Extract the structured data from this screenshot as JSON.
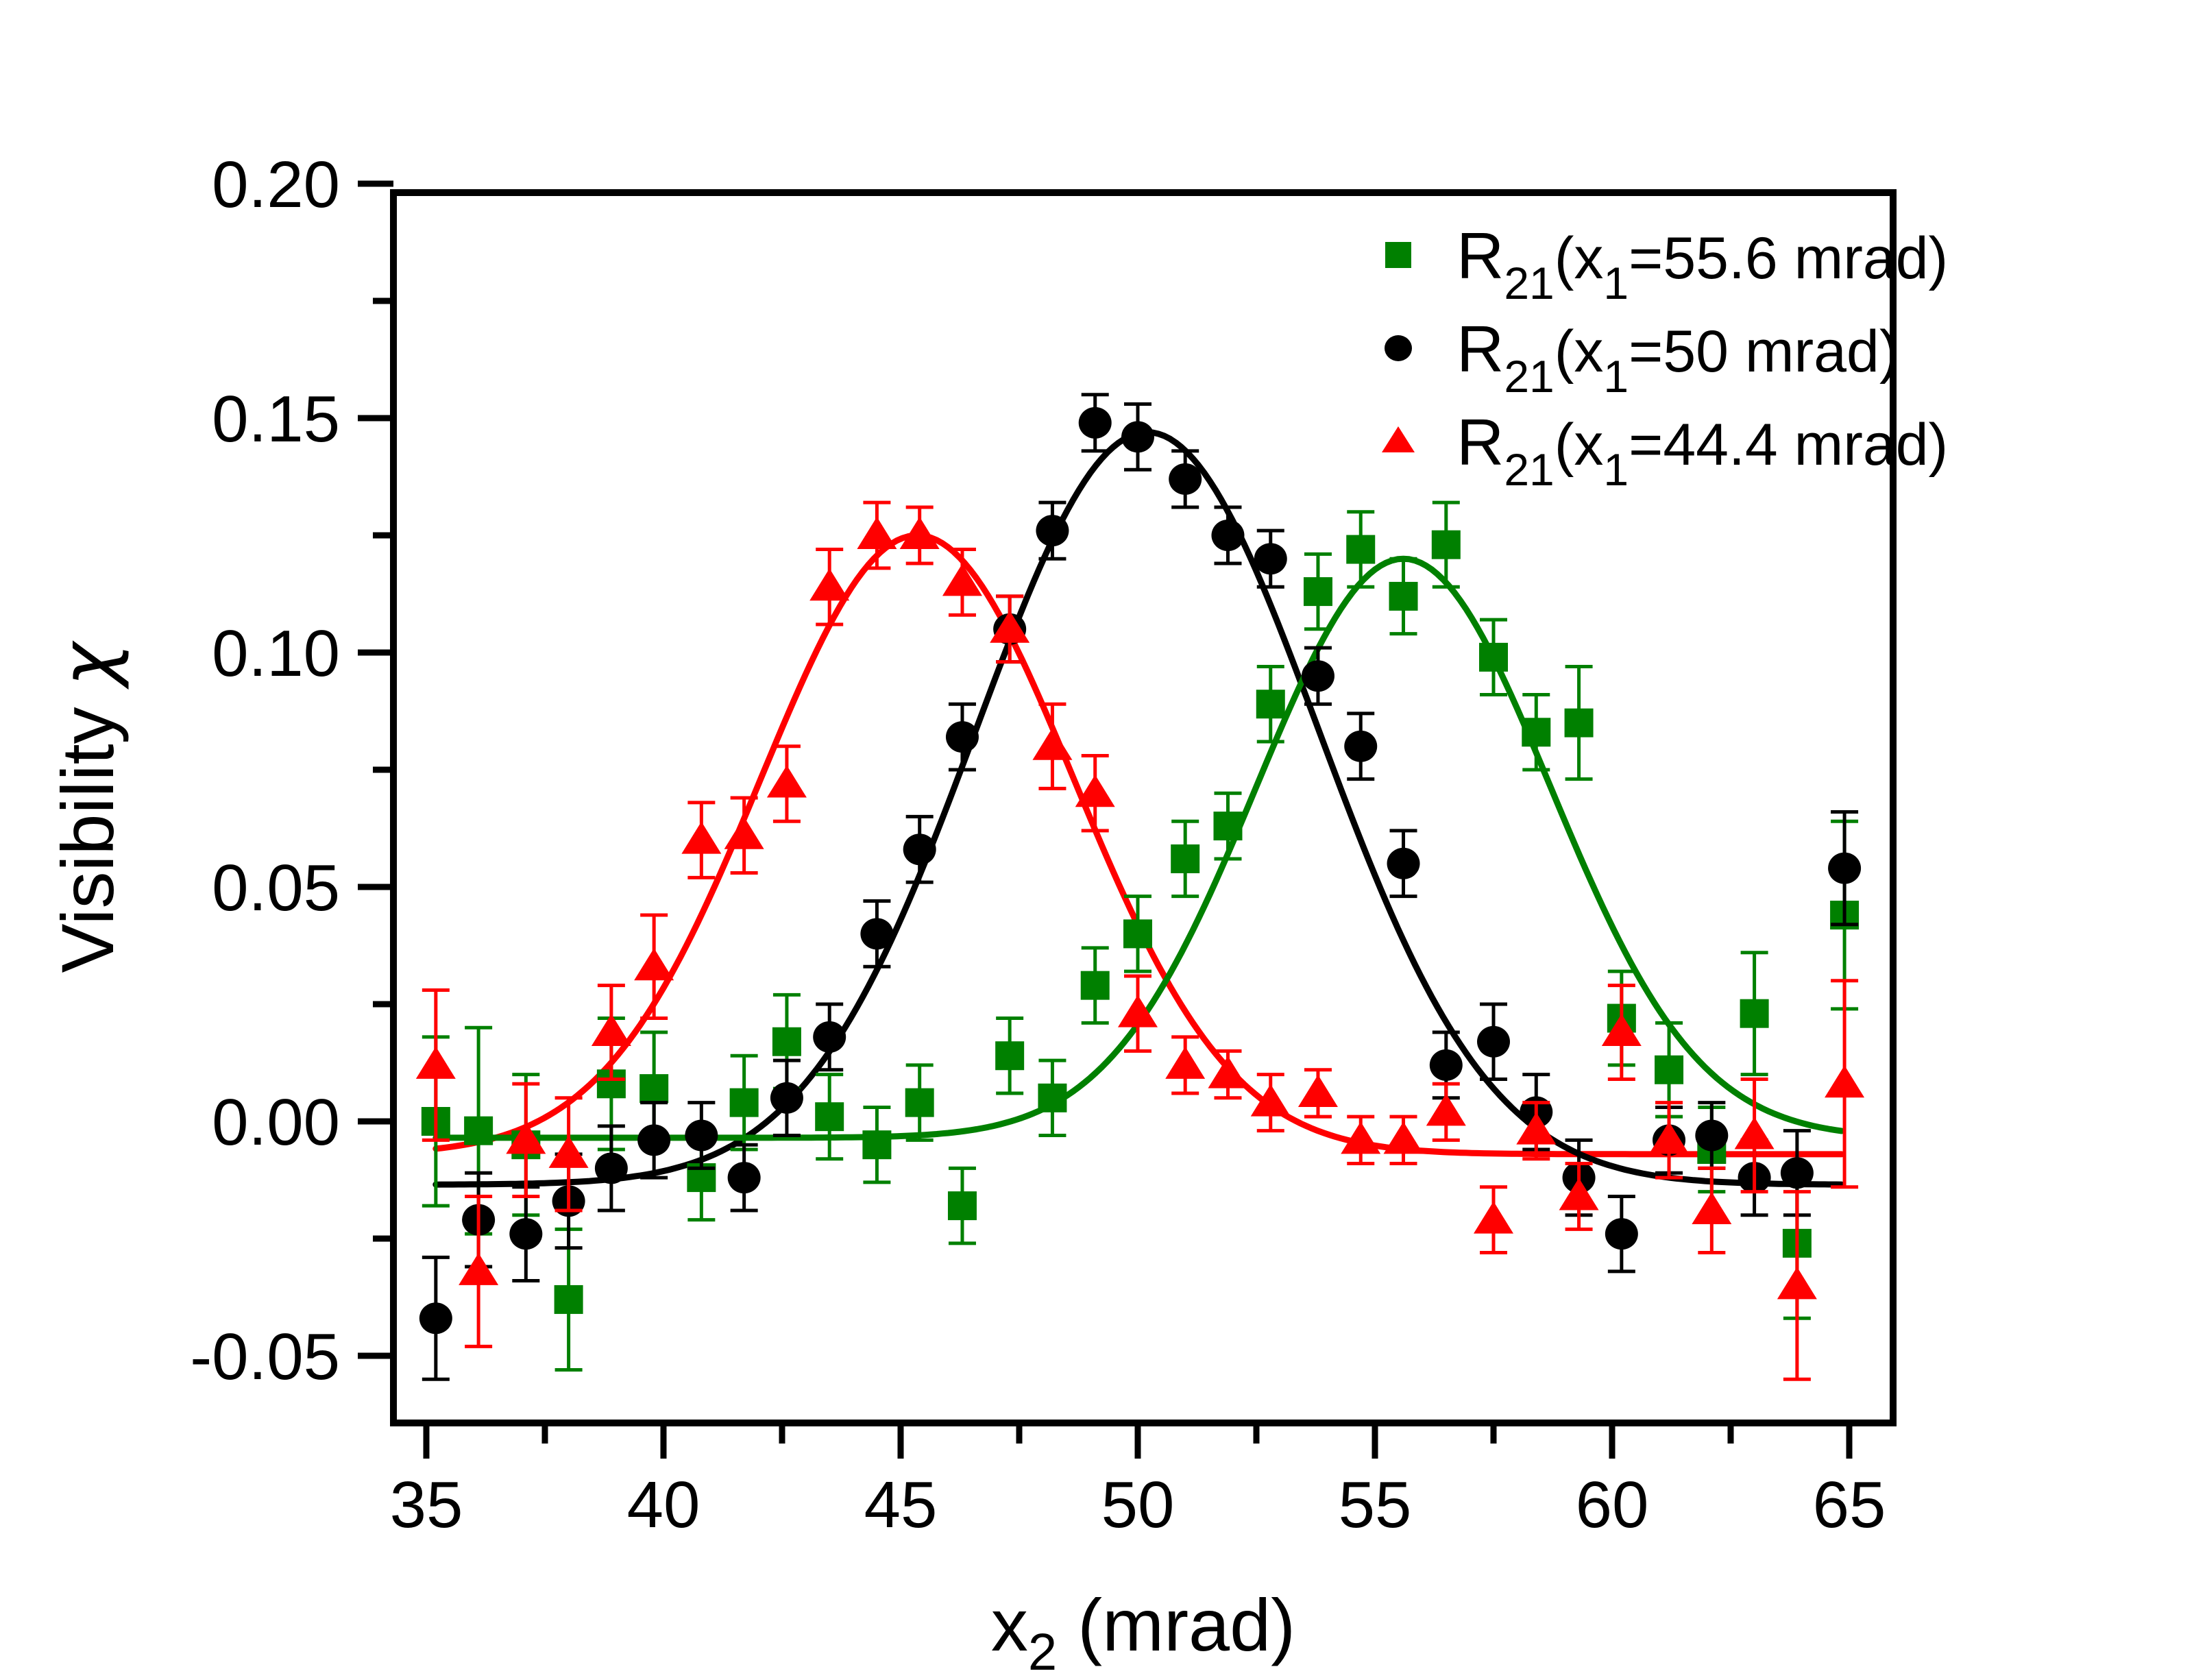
{
  "figure": {
    "background": "#ffffff",
    "frame_color": "#000000",
    "x_axis": {
      "title_main": "x",
      "title_sub": "2",
      "title_tail": " (mrad)",
      "min": 34.3,
      "max": 65.9,
      "major_ticks": [
        35,
        40,
        45,
        50,
        55,
        60,
        65
      ],
      "minor_ticks": [
        37.5,
        42.5,
        47.5,
        52.5,
        57.5,
        62.5
      ]
    },
    "y_axis": {
      "title_main": "Visibility ",
      "title_chi": "χ",
      "min": -0.0643,
      "max": 0.2,
      "major_ticks": [
        0.2,
        0.15,
        0.1,
        0.05,
        0.0,
        -0.05
      ],
      "minor_ticks": [
        0.175,
        0.125,
        0.075,
        0.025,
        -0.025
      ]
    },
    "legend": {
      "items": [
        {
          "marker": "square",
          "color": "#008000",
          "r": "R",
          "r_sub": "21",
          "open": "(x",
          "x_sub": "1",
          "value": "=55.6 mrad)"
        },
        {
          "marker": "circle",
          "color": "#000000",
          "r": "R",
          "r_sub": "21",
          "open": "(x",
          "x_sub": "1",
          "value": "=50 mrad)"
        },
        {
          "marker": "triangle",
          "color": "#ff0000",
          "r": "R",
          "r_sub": "21",
          "open": "(x",
          "x_sub": "1",
          "value": "=44.4 mrad)"
        }
      ]
    }
  },
  "chart_data": {
    "type": "scatter",
    "title": "",
    "xlabel": "x2 (mrad)",
    "ylabel": "Visibility chi",
    "xlim": [
      34.3,
      65.9
    ],
    "ylim": [
      -0.064,
      0.2
    ],
    "grid": false,
    "legend_position": "top-right",
    "x": [
      35.2,
      36.1,
      37.1,
      38.0,
      38.9,
      39.8,
      40.8,
      41.7,
      42.6,
      43.5,
      44.5,
      45.4,
      46.3,
      47.3,
      48.2,
      49.1,
      50.0,
      51.0,
      51.9,
      52.8,
      53.8,
      54.7,
      55.6,
      56.5,
      57.5,
      58.4,
      59.3,
      60.2,
      61.2,
      62.1,
      63.0,
      63.9,
      64.9
    ],
    "series": [
      {
        "name": "R21(x1=55.6 mrad)",
        "marker": "square",
        "color": "#008000",
        "y": [
          0.0,
          -0.002,
          -0.005,
          -0.038,
          0.008,
          0.007,
          -0.012,
          0.004,
          0.017,
          0.001,
          -0.005,
          0.004,
          -0.018,
          0.014,
          0.005,
          0.029,
          0.04,
          0.056,
          0.063,
          0.089,
          0.113,
          0.122,
          0.112,
          0.123,
          0.099,
          0.083,
          0.085,
          0.022,
          0.011,
          -0.006,
          0.023,
          -0.026,
          0.044
        ],
        "yerr": [
          0.018,
          0.022,
          0.015,
          0.015,
          0.014,
          0.012,
          0.009,
          0.01,
          0.01,
          0.009,
          0.008,
          0.008,
          0.008,
          0.008,
          0.008,
          0.008,
          0.008,
          0.008,
          0.007,
          0.008,
          0.008,
          0.008,
          0.008,
          0.009,
          0.008,
          0.008,
          0.012,
          0.01,
          0.01,
          0.009,
          0.013,
          0.016,
          0.02
        ],
        "fit": {
          "type": "gaussian",
          "baseline": -0.0035,
          "amplitude": 0.1235,
          "center": 55.6,
          "sigma": 3.1,
          "range": [
            35.2,
            64.9
          ]
        }
      },
      {
        "name": "R21(x1=50 mrad)",
        "marker": "circle",
        "color": "#000000",
        "y": [
          -0.042,
          -0.021,
          -0.024,
          -0.017,
          -0.01,
          -0.004,
          -0.003,
          -0.012,
          0.005,
          0.018,
          0.04,
          0.058,
          0.082,
          0.105,
          0.126,
          0.149,
          0.146,
          0.137,
          0.125,
          0.12,
          0.095,
          0.08,
          0.055,
          0.012,
          0.017,
          0.002,
          -0.012,
          -0.024,
          -0.004,
          -0.003,
          -0.012,
          -0.011,
          0.054
        ],
        "yerr": [
          0.013,
          0.01,
          0.01,
          0.01,
          0.009,
          0.008,
          0.007,
          0.007,
          0.008,
          0.007,
          0.007,
          0.007,
          0.007,
          0.007,
          0.006,
          0.006,
          0.007,
          0.006,
          0.006,
          0.006,
          0.006,
          0.007,
          0.007,
          0.007,
          0.008,
          0.008,
          0.008,
          0.008,
          0.007,
          0.007,
          0.008,
          0.009,
          0.012
        ],
        "fit": {
          "type": "gaussian",
          "baseline": -0.0135,
          "amplitude": 0.1605,
          "center": 50.2,
          "sigma": 3.6,
          "range": [
            35.2,
            64.9
          ]
        }
      },
      {
        "name": "R21(x1=44.4 mrad)",
        "marker": "triangle",
        "color": "#ff0000",
        "y": [
          0.012,
          -0.032,
          -0.004,
          -0.007,
          0.019,
          0.033,
          0.06,
          0.061,
          0.072,
          0.114,
          0.125,
          0.125,
          0.115,
          0.105,
          0.08,
          0.07,
          0.023,
          0.012,
          0.01,
          0.004,
          0.006,
          -0.004,
          -0.004,
          0.002,
          -0.021,
          -0.002,
          -0.016,
          0.019,
          -0.004,
          -0.019,
          -0.003,
          -0.035,
          0.008
        ],
        "yerr": [
          0.016,
          0.016,
          0.012,
          0.012,
          0.01,
          0.011,
          0.008,
          0.008,
          0.008,
          0.008,
          0.007,
          0.006,
          0.007,
          0.007,
          0.009,
          0.008,
          0.008,
          0.006,
          0.005,
          0.006,
          0.005,
          0.005,
          0.005,
          0.006,
          0.007,
          0.006,
          0.007,
          0.01,
          0.008,
          0.009,
          0.012,
          0.02,
          0.022
        ],
        "fit": {
          "type": "gaussian",
          "baseline": -0.007,
          "amplitude": 0.132,
          "center": 45.35,
          "sigma": 3.3,
          "range": [
            35.2,
            64.9
          ]
        }
      }
    ]
  }
}
